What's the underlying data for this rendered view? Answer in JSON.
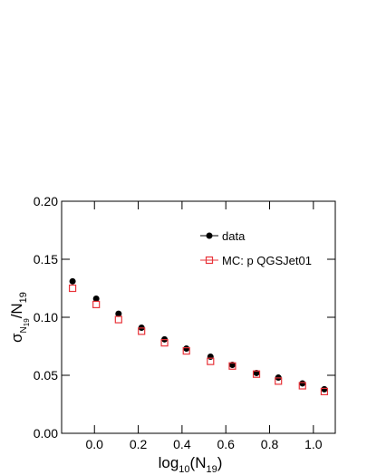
{
  "chart_data": {
    "type": "scatter",
    "x_label_parts": [
      "log",
      "10",
      "(N",
      "19",
      ")"
    ],
    "y_label_parts": [
      "σ",
      "N",
      "19",
      "/N",
      "19"
    ],
    "series": [
      {
        "name": "data",
        "color": "#000000",
        "marker": "filled-circle",
        "x": [
          -0.1,
          0.008,
          0.11,
          0.215,
          0.32,
          0.42,
          0.53,
          0.63,
          0.74,
          0.84,
          0.95,
          1.05
        ],
        "values": [
          0.131,
          0.116,
          0.103,
          0.091,
          0.081,
          0.073,
          0.066,
          0.059,
          0.052,
          0.048,
          0.043,
          0.038
        ]
      },
      {
        "name": "MC: p QGSJet01",
        "color": "#e8343a",
        "marker": "open-square",
        "x": [
          -0.1,
          0.008,
          0.11,
          0.215,
          0.32,
          0.42,
          0.53,
          0.63,
          0.74,
          0.84,
          0.95,
          1.05
        ],
        "values": [
          0.125,
          0.111,
          0.098,
          0.088,
          0.078,
          0.071,
          0.062,
          0.058,
          0.051,
          0.045,
          0.041,
          0.036
        ]
      }
    ],
    "xlim": [
      -0.15,
      1.1
    ],
    "ylim": [
      0,
      0.2
    ],
    "xticks": [
      {
        "value": 0,
        "label": "0.0"
      },
      {
        "value": 0.2,
        "label": "0.2"
      },
      {
        "value": 0.4,
        "label": "0.4"
      },
      {
        "value": 0.6,
        "label": "0.6"
      },
      {
        "value": 0.8,
        "label": "0.8"
      },
      {
        "value": 1,
        "label": "1.0"
      }
    ],
    "yticks": [
      {
        "value": 0,
        "label": "0.00"
      },
      {
        "value": 0.05,
        "label": "0.05"
      },
      {
        "value": 0.1,
        "label": "0.10"
      },
      {
        "value": 0.15,
        "label": "0.15"
      },
      {
        "value": 0.2,
        "label": "0.20"
      }
    ],
    "grid": false
  }
}
